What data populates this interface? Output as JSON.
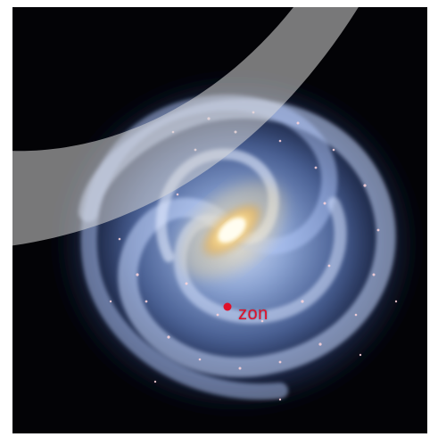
{
  "image": {
    "subject": "milky-way-galaxy-illustration",
    "background_color": "#030306",
    "overlay_band_color": "#d8d8d8"
  },
  "sun_marker": {
    "label": "zon",
    "color": "#e0102a"
  }
}
